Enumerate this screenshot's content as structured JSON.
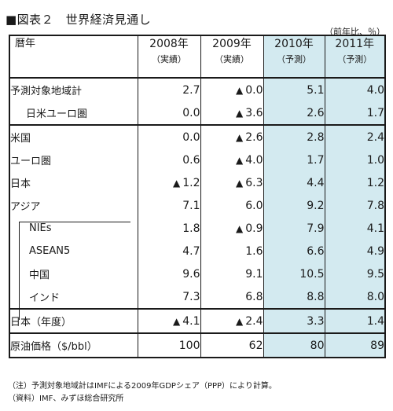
{
  "title": "■図表２　世界経済見通し",
  "unit": "（前年比、％）",
  "header": {
    "label": "暦年",
    "columns": [
      {
        "year": "2008年",
        "kind": "（実績）"
      },
      {
        "year": "2009年",
        "kind": "（実績）"
      },
      {
        "year": "2010年",
        "kind": "（予測）"
      },
      {
        "year": "2011年",
        "kind": "（予測）"
      }
    ]
  },
  "triangle": "▲",
  "rows": [
    {
      "label": "予測対象地域計",
      "values": [
        "2.7",
        "0.0",
        "5.1",
        "4.0"
      ],
      "neg": [
        false,
        true,
        false,
        false
      ]
    },
    {
      "label": "日米ユーロ圏",
      "values": [
        "0.0",
        "3.6",
        "2.6",
        "1.7"
      ],
      "neg": [
        false,
        true,
        false,
        false
      ]
    },
    {
      "label": "米国",
      "values": [
        "0.0",
        "2.6",
        "2.8",
        "2.4"
      ],
      "neg": [
        false,
        true,
        false,
        false
      ]
    },
    {
      "label": "ユーロ圏",
      "values": [
        "0.6",
        "4.0",
        "1.7",
        "1.0"
      ],
      "neg": [
        false,
        true,
        false,
        false
      ]
    },
    {
      "label": "日本",
      "values": [
        "1.2",
        "6.3",
        "4.4",
        "1.2"
      ],
      "neg": [
        true,
        true,
        false,
        false
      ]
    },
    {
      "label": "アジア",
      "values": [
        "7.1",
        "6.0",
        "9.2",
        "7.8"
      ],
      "neg": [
        false,
        false,
        false,
        false
      ]
    },
    {
      "label": "NIEs",
      "values": [
        "1.8",
        "0.9",
        "7.9",
        "4.1"
      ],
      "neg": [
        false,
        true,
        false,
        false
      ]
    },
    {
      "label": "ASEAN5",
      "values": [
        "4.7",
        "1.6",
        "6.6",
        "4.9"
      ],
      "neg": [
        false,
        false,
        false,
        false
      ]
    },
    {
      "label": "中国",
      "values": [
        "9.6",
        "9.1",
        "10.5",
        "9.5"
      ],
      "neg": [
        false,
        false,
        false,
        false
      ]
    },
    {
      "label": "インド",
      "values": [
        "7.3",
        "6.8",
        "8.8",
        "8.0"
      ],
      "neg": [
        false,
        false,
        false,
        false
      ]
    },
    {
      "label": "日本（年度）",
      "values": [
        "4.1",
        "2.4",
        "3.3",
        "1.4"
      ],
      "neg": [
        true,
        true,
        false,
        false
      ]
    },
    {
      "label": "原油価格（$/bbl）",
      "values": [
        "100",
        "62",
        "80",
        "89"
      ],
      "neg": [
        false,
        false,
        false,
        false
      ]
    }
  ],
  "notes": [
    "（注）予測対象地域計はIMFによる2009年GDPシェア（PPP）により計算。",
    "（資料）IMF、みずほ総合研究所"
  ]
}
